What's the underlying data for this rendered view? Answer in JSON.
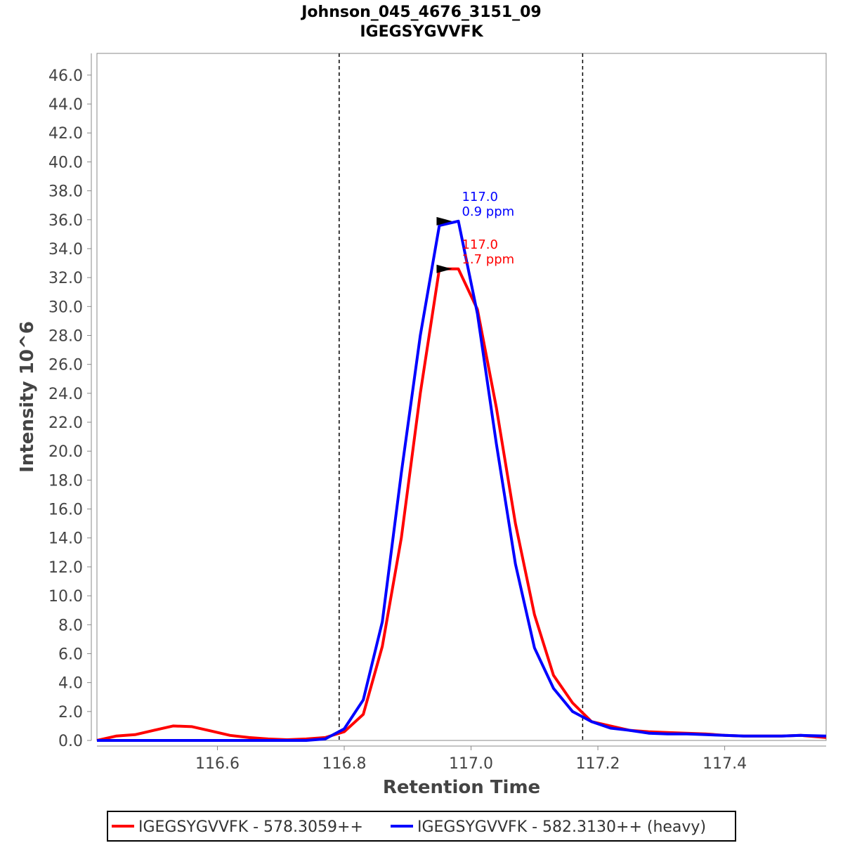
{
  "chart_data": {
    "type": "line",
    "title": "Johnson_045_4676_3151_09",
    "subtitle": "IGEGSYGVVFK",
    "xlabel": "Retention Time",
    "ylabel": "Intensity 10^6",
    "xlim": [
      116.41,
      117.56
    ],
    "ylim": [
      0,
      47.5
    ],
    "x_ticks": [
      116.6,
      116.8,
      117.0,
      117.2,
      117.4
    ],
    "x_tick_labels": [
      "116.6",
      "116.8",
      "117.0",
      "117.2",
      "117.4"
    ],
    "y_ticks": [
      0,
      2,
      4,
      6,
      8,
      10,
      12,
      14,
      16,
      18,
      20,
      22,
      24,
      26,
      28,
      30,
      32,
      34,
      36,
      38,
      40,
      42,
      44,
      46
    ],
    "y_tick_labels": [
      "0.0",
      "2.0",
      "4.0",
      "6.0",
      "8.0",
      "10.0",
      "12.0",
      "14.0",
      "16.0",
      "18.0",
      "20.0",
      "22.0",
      "24.0",
      "26.0",
      "28.0",
      "30.0",
      "32.0",
      "34.0",
      "36.0",
      "38.0",
      "40.0",
      "42.0",
      "44.0",
      "46.0"
    ],
    "boundaries": [
      116.792,
      117.176
    ],
    "series": [
      {
        "name": "IGEGSYGVVFK - 578.3059++",
        "color": "#ff0000",
        "x": [
          116.41,
          116.44,
          116.47,
          116.5,
          116.53,
          116.56,
          116.59,
          116.62,
          116.65,
          116.68,
          116.71,
          116.74,
          116.77,
          116.8,
          116.83,
          116.86,
          116.89,
          116.92,
          116.95,
          116.98,
          117.01,
          117.04,
          117.07,
          117.1,
          117.13,
          117.16,
          117.19,
          117.22,
          117.25,
          117.28,
          117.31,
          117.34,
          117.37,
          117.4,
          117.43,
          117.46,
          117.49,
          117.52,
          117.56
        ],
        "y": [
          0.0,
          0.3,
          0.4,
          0.7,
          1.0,
          0.95,
          0.65,
          0.35,
          0.2,
          0.1,
          0.05,
          0.1,
          0.2,
          0.6,
          1.8,
          6.5,
          14.0,
          24.0,
          32.6,
          32.6,
          29.8,
          23.0,
          15.0,
          8.7,
          4.5,
          2.6,
          1.3,
          1.0,
          0.7,
          0.6,
          0.55,
          0.5,
          0.45,
          0.35,
          0.3,
          0.3,
          0.3,
          0.35,
          0.2
        ]
      },
      {
        "name": "IGEGSYGVVFK - 582.3130++ (heavy)",
        "color": "#0000ff",
        "x": [
          116.41,
          116.44,
          116.47,
          116.5,
          116.53,
          116.56,
          116.59,
          116.62,
          116.65,
          116.68,
          116.71,
          116.74,
          116.77,
          116.8,
          116.83,
          116.86,
          116.89,
          116.92,
          116.95,
          116.98,
          117.01,
          117.04,
          117.07,
          117.1,
          117.13,
          117.16,
          117.19,
          117.22,
          117.25,
          117.28,
          117.31,
          117.34,
          117.37,
          117.4,
          117.43,
          117.46,
          117.49,
          117.52,
          117.56
        ],
        "y": [
          0.0,
          0.0,
          0.0,
          0.0,
          0.0,
          0.0,
          0.0,
          0.0,
          0.0,
          0.0,
          0.0,
          0.0,
          0.1,
          0.8,
          2.8,
          8.2,
          18.5,
          28.0,
          35.6,
          35.9,
          29.5,
          20.5,
          12.2,
          6.4,
          3.6,
          2.0,
          1.3,
          0.85,
          0.7,
          0.5,
          0.45,
          0.45,
          0.4,
          0.35,
          0.3,
          0.3,
          0.3,
          0.35,
          0.3
        ]
      }
    ],
    "annotations": [
      {
        "series": 1,
        "x": 116.97,
        "y": 35.9,
        "line1": "117.0",
        "line2": "0.9 ppm",
        "color": "#0000ff"
      },
      {
        "series": 0,
        "x": 116.97,
        "y": 32.6,
        "line1": "117.0",
        "line2": "1.7 ppm",
        "color": "#ff0000"
      }
    ],
    "legend_position": "bottom-center"
  }
}
